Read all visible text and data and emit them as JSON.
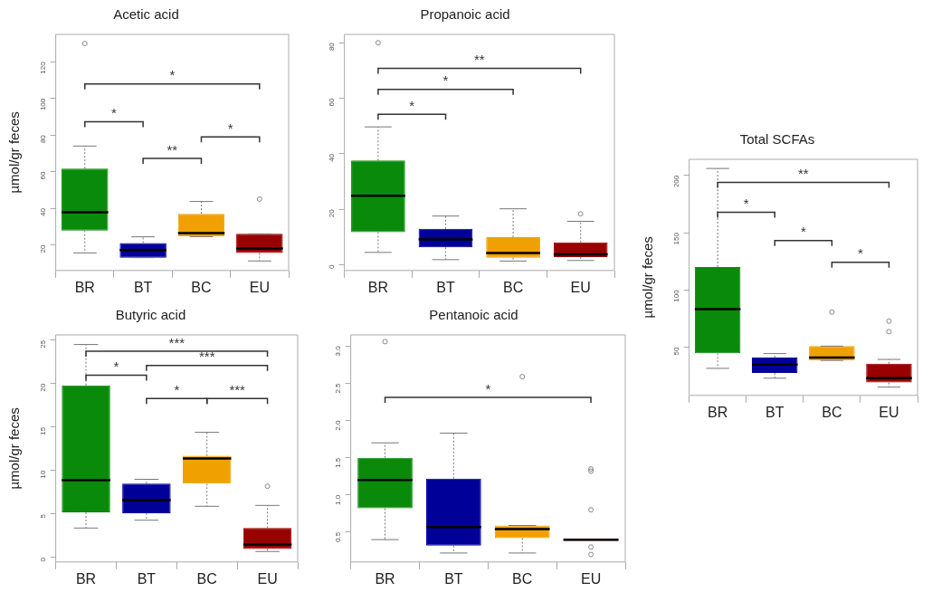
{
  "chart_data": [
    {
      "type": "box",
      "title": "Acetic acid",
      "ylabel": "µmol/gr feces",
      "categories": [
        "BR",
        "BT",
        "BC",
        "EU"
      ],
      "colors": [
        "#0a8a0a",
        "#000099",
        "#f0a000",
        "#990000"
      ],
      "boxes": [
        {
          "low": 15.6,
          "q1": 27.8,
          "median": 37.8,
          "q3": 61.7,
          "high": 74,
          "outliers": [
            130
          ]
        },
        {
          "low": 13,
          "q1": 13,
          "median": 17.2,
          "q3": 21,
          "high": 24.4
        },
        {
          "low": 24.5,
          "q1": 24.7,
          "median": 26.4,
          "q3": 37,
          "high": 43.7
        },
        {
          "low": 11.2,
          "q1": 15.6,
          "median": 18,
          "q3": 26,
          "high": 26,
          "outliers": [
            45
          ]
        }
      ],
      "ylim": [
        6,
        135
      ],
      "yticks": [
        20,
        40,
        60,
        80,
        100,
        120
      ],
      "grid": false,
      "annotations": [
        "*",
        "*",
        "**",
        "*"
      ]
    },
    {
      "type": "box",
      "title": "Propanoic acid",
      "categories": [
        "BR",
        "BT",
        "BC",
        "EU"
      ],
      "colors": [
        "#0a8a0a",
        "#000099",
        "#f0a000",
        "#990000"
      ],
      "boxes": [
        {
          "low": 4.5,
          "q1": 11.8,
          "median": 24.9,
          "q3": 37.6,
          "high": 49.7,
          "outliers": [
            80
          ]
        },
        {
          "low": 1.9,
          "q1": 6.3,
          "median": 9.2,
          "q3": 13,
          "high": 17.6
        },
        {
          "low": 1.4,
          "q1": 2.6,
          "median": 4.3,
          "q3": 10,
          "high": 20.2
        },
        {
          "low": 1.6,
          "q1": 2.8,
          "median": 3.8,
          "q3": 8.1,
          "high": 15.7,
          "outliers": [
            18.4
          ]
        }
      ],
      "ylim": [
        -2,
        83
      ],
      "yticks": [
        0,
        20,
        40,
        60,
        80
      ],
      "grid": false,
      "annotations": [
        "**",
        "*",
        "*"
      ]
    },
    {
      "type": "box",
      "title": "Total SCFAs",
      "ylabel": "µmol/gr feces",
      "categories": [
        "BR",
        "BT",
        "BC",
        "EU"
      ],
      "colors": [
        "#0a8a0a",
        "#000099",
        "#f0a000",
        "#990000"
      ],
      "boxes": [
        {
          "low": 31.6,
          "q1": 44.8,
          "median": 83.2,
          "q3": 120,
          "high": 206
        },
        {
          "low": 23,
          "q1": 27.6,
          "median": 34.9,
          "q3": 41,
          "high": 44.5
        },
        {
          "low": 38.5,
          "q1": 38.5,
          "median": 41,
          "q3": 51,
          "high": 51,
          "outliers": [
            80.7
          ]
        },
        {
          "low": 15.2,
          "q1": 19.2,
          "median": 23.1,
          "q3": 35.7,
          "high": 39.4,
          "outliers": [
            72.8,
            63.6
          ]
        }
      ],
      "ylim": [
        8,
        214
      ],
      "yticks": [
        50,
        100,
        150,
        200
      ],
      "grid": false,
      "annotations": [
        "**",
        "*",
        "*",
        "*"
      ]
    },
    {
      "type": "box",
      "title": "Butyric acid",
      "ylabel": "µmol/gr feces",
      "categories": [
        "BR",
        "BT",
        "BC",
        "EU"
      ],
      "colors": [
        "#0a8a0a",
        "#000099",
        "#f0a000",
        "#990000"
      ],
      "boxes": [
        {
          "low": 3.4,
          "q1": 5.2,
          "median": 8.9,
          "q3": 19.8,
          "high": 24.5
        },
        {
          "low": 4.3,
          "q1": 5.1,
          "median": 6.6,
          "q3": 8.5,
          "high": 9
        },
        {
          "low": 5.9,
          "q1": 8.5,
          "median": 11.4,
          "q3": 11.7,
          "high": 14.4
        },
        {
          "low": 0.7,
          "q1": 1,
          "median": 1.5,
          "q3": 3.4,
          "high": 6,
          "outliers": [
            8.2
          ]
        }
      ],
      "ylim": [
        -0.5,
        25.6
      ],
      "yticks": [
        0,
        5,
        10,
        15,
        20,
        25
      ],
      "grid": false,
      "annotations": [
        "***",
        "***",
        "*",
        "*",
        "***"
      ]
    },
    {
      "type": "box",
      "title": "Pentanoic acid",
      "categories": [
        "BR",
        "BT",
        "BC",
        "EU"
      ],
      "colors": [
        "#0a8a0a",
        "#000099",
        "#f0a000",
        "#990000"
      ],
      "boxes": [
        {
          "low": 0.4,
          "q1": 0.82,
          "median": 1.2,
          "q3": 1.5,
          "high": 1.7,
          "outliers": [
            3.06
          ]
        },
        {
          "low": 0.22,
          "q1": 0.32,
          "median": 0.57,
          "q3": 1.22,
          "high": 1.83
        },
        {
          "low": 0.22,
          "q1": 0.42,
          "median": 0.54,
          "q3": 0.59,
          "high": 0.59,
          "outliers": [
            2.59
          ]
        },
        {
          "low": 0.4,
          "q1": 0.4,
          "median": 0.4,
          "q3": 0.4,
          "high": 0.4,
          "outliers": [
            1.35,
            1.32,
            0.8,
            0.3,
            0.2
          ]
        }
      ],
      "ylim": [
        0.1,
        3.15
      ],
      "yticks": [
        0.5,
        {
          "value": 1,
          "label": "1.0"
        },
        {
          "value": 1.5,
          "label": "1.5"
        },
        {
          "value": 2,
          "label": "2.0"
        },
        {
          "value": 2.5,
          "label": "2.5"
        },
        {
          "value": 3,
          "label": "3.0"
        }
      ],
      "grid": false,
      "annotations": [
        "*"
      ]
    }
  ]
}
